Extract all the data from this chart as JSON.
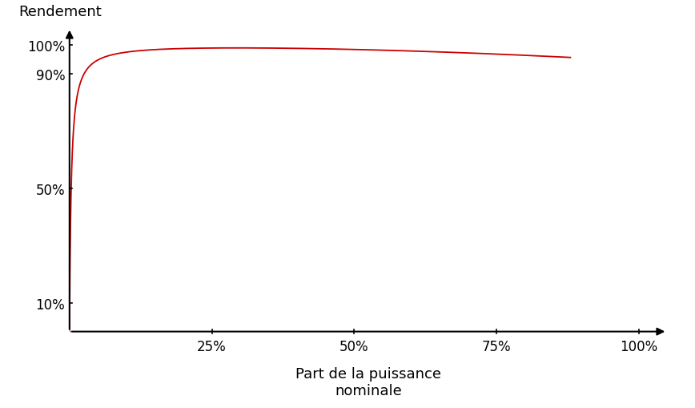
{
  "title": "",
  "ylabel": "Rendement",
  "xlabel": "Part de la puissance\nnominale",
  "background_color": "#ffffff",
  "line_color": "#cc0000",
  "axis_color": "#000000",
  "x_ticks": [
    0.25,
    0.5,
    0.75,
    1.0
  ],
  "x_tick_labels": [
    "25%",
    "50%",
    "75%",
    "100%"
  ],
  "y_ticks": [
    0.1,
    0.5,
    0.9,
    1.0
  ],
  "y_tick_labels": [
    "10%",
    "50%",
    "90%",
    "100%"
  ],
  "xlim": [
    0,
    1.05
  ],
  "ylim": [
    -0.01,
    1.06
  ],
  "curve_x_end": 0.88,
  "B_param": 0.003,
  "A_param": 1.005,
  "rolloff": 0.058
}
